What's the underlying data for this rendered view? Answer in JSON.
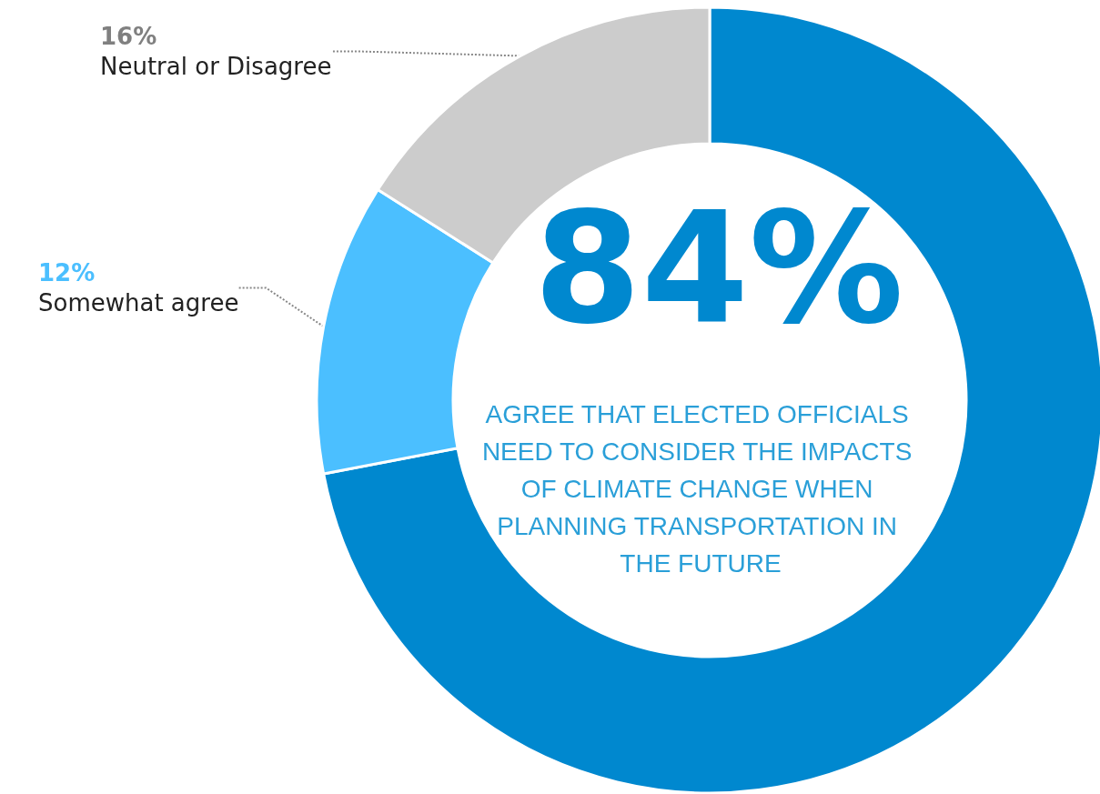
{
  "chart_data": {
    "type": "donut",
    "categories": [
      null,
      "Somewhat agree",
      "Neutral or Disagree"
    ],
    "values": [
      72,
      12,
      16
    ],
    "value_labels": [
      null,
      "12%",
      "16%"
    ],
    "colors": [
      "#0088cf",
      "#4bbfff",
      "#cccccc"
    ],
    "annotations": [
      "84%",
      "AGREE THAT ELECTED OFFICIALS NEED TO CONSIDER THE IMPACTS OF CLIMATE CHANGE WHEN PLANNING TRANSPORTATION IN THE FUTURE"
    ]
  }
}
